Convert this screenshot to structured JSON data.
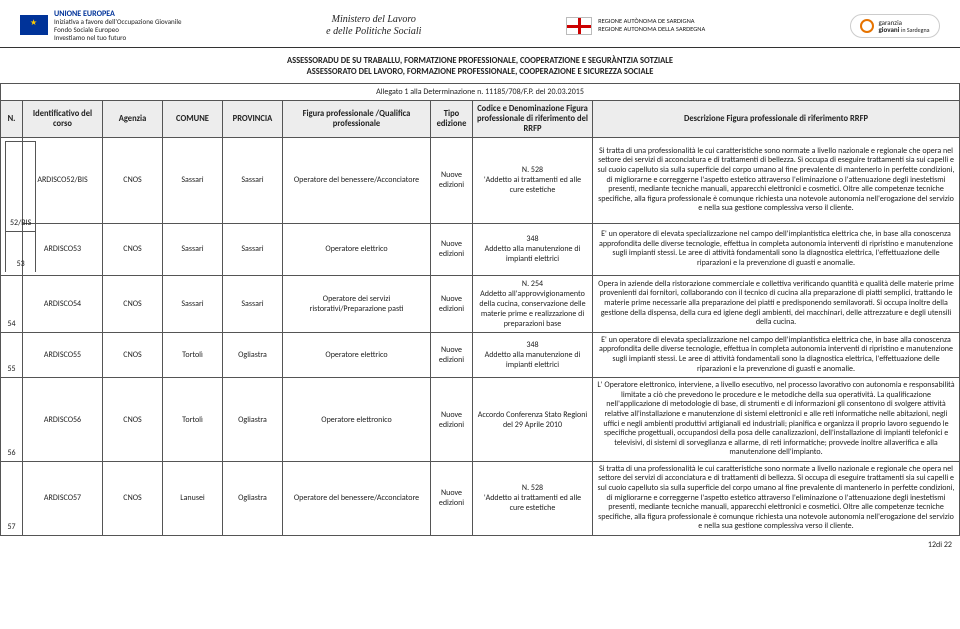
{
  "header": {
    "eu_title": "UNIONE EUROPEA",
    "eu_sub1": "Iniziativa a favore dell'Occupazione Giovanile",
    "eu_sub2": "Fondo Sociale Europeo",
    "eu_sub3": "Investiamo nel tuo futuro",
    "center_line1": "Ministero del Lavoro",
    "center_line2": "e delle Politiche Sociali",
    "sard_line1": "REGIONE AUTÒNOMA DE SARDIGNA",
    "sard_line2": "REGIONE AUTONOMA DELLA SARDEGNA",
    "gar_line1": "garanzia",
    "gar_line2": "giovani",
    "gar_line3": "in Sardegna"
  },
  "subheader": {
    "l1": "ASSESSORADU DE SU TRABALLU, FORMATZIONE PROFESSIONALE, COOPERATZIONE E SEGURÀNTZIA SOTZIALE",
    "l2": "ASSESSORATO DEL LAVORO, FORMAZIONE PROFESSIONALE, COOPERAZIONE E SICUREZZA SOCIALE"
  },
  "allegato": "Allegato 1 alla Determinazione n. 11185/708/F.P. del 20.03.2015",
  "columns": {
    "n": "N.",
    "id": "Identificativo del corso",
    "ag": "Agenzia",
    "com": "COMUNE",
    "prov": "PROVINCIA",
    "fig": "Figura professionale /Qualifica professionale",
    "ed": "Tipo edizione",
    "cod": "Codice e Denominazione Figura professionale di riferimento del RRFP",
    "desc": "Descrizione Figura professionale di riferimento RRFP"
  },
  "edizione": "Nuove edizioni",
  "agenzia": "CNOS",
  "rows": [
    {
      "n": "52/BIS",
      "id": "ARDISCO52/BIS",
      "com": "Sassari",
      "prov": "Sassari",
      "fig": "Operatore del benessere/Acconciatore",
      "cod": "N. 528\n'Addetto ai trattamenti ed alle cure estetiche",
      "desc": "Si tratta di una professionalità le cui caratteristiche sono normate a livello nazionale e regionale che opera nel settore dei servizi di acconciatura e di trattamenti di bellezza. Si occupa di eseguire trattamenti sia sui capelli e sul cuoio capelluto sia sulla superficie del corpo umano al fine prevalente di mantenerlo in perfette condizioni, di migliorarne e correggerne l'aspetto estetico attraverso l'eliminazione o l'attenuazione degli inestetismi presenti, mediante tecniche manuali, apparecchi elettronici e cosmetici. Oltre alle competenze tecniche specifiche, alla figura professionale è comunque richiesta una notevole autonomia nell'erogazione del servizio e nella sua gestione complessiva verso il cliente."
    },
    {
      "n": "53",
      "id": "ARDISCO53",
      "com": "Sassari",
      "prov": "Sassari",
      "fig": "Operatore elettrico",
      "cod": "348\nAddetto alla manutenzione di impianti elettrici",
      "desc": "E' un operatore di elevata specializzazione nel campo dell'impiantistica elettrica che, in base alla conoscenza approfondita delle diverse tecnologie, effettua in completa autonomia interventi di ripristino e manutenzione sugli impianti stessi. Le aree di attività fondamentali sono la diagnostica elettrica, l'effettuazione delle riparazioni e la prevenzione di guasti e anomalie."
    },
    {
      "n": "54",
      "id": "ARDISCO54",
      "com": "Sassari",
      "prov": "Sassari",
      "fig": "Operatore dei servizi ristorativi/Preparazione pasti",
      "cod": "N. 254\nAddetto all'approvvigionamento della cucina, conservazione delle materie prime e realizzazione di preparazioni base",
      "desc": "Opera in aziende della ristorazione commerciale e collettiva verificando quantità e qualità delle materie prime provenienti dai fornitori, collaborando con il tecnico di cucina alla preparazione di piatti semplici, trattando le materie prime necessarie alla preparazione dei piatti e predisponendo semilavorati. Si occupa inoltre della gestione della dispensa, della cura ed igiene degli ambienti, dei macchinari, delle attrezzature e degli utensili della cucina."
    },
    {
      "n": "55",
      "id": "ARDISCO55",
      "com": "Tortolì",
      "prov": "Ogliastra",
      "fig": "Operatore elettrico",
      "cod": "348\nAddetto alla manutenzione di impianti elettrici",
      "desc": "E' un operatore di elevata specializzazione nel campo dell'impiantistica elettrica che, in base alla conoscenza approfondita delle diverse tecnologie, effettua in completa autonomia interventi di ripristino e manutenzione sugli impianti stessi. Le aree di attività fondamentali sono la diagnostica elettrica, l'effettuazione delle riparazioni e la prevenzione di guasti e anomalie."
    },
    {
      "n": "56",
      "id": "ARDISCO56",
      "com": "Tortolì",
      "prov": "Ogliastra",
      "fig": "Operatore elettronico",
      "cod": "Accordo Conferenza Stato Regioni del 29 Aprile 2010",
      "desc": "L' Operatore elettronico, interviene, a livello esecutivo, nel processo lavorativo con autonomia e responsabilità limitate a ciò che prevedono le procedure e le metodiche della sua operatività. La qualificazione nell'applicazione di metodologie di base, di strumenti e di informazioni gli consentono di svolgere attività relative all'installazione e manutenzione di sistemi elettronici e alle reti informatiche nelle abitazioni, negli uffici e negli ambienti produttivi artigianali ed industriali; pianifica e organizza il proprio lavoro seguendo le specifiche progettuali, occupandosi della posa delle canalizzazioni, dell'installazione di impianti telefonici e televisivi, di sistemi di sorveglianza e allarme, di reti informatiche; provvede inoltre allaverifica e alla manutenzione dell'impianto."
    },
    {
      "n": "57",
      "id": "ARDISCO57",
      "com": "Lanusei",
      "prov": "Ogliastra",
      "fig": "Operatore del benessere/Acconciatore",
      "cod": "N. 528\n'Addetto ai trattamenti ed alle cure estetiche",
      "desc": "Si tratta di una professionalità le cui caratteristiche sono normate a livello nazionale e regionale che opera nel settore dei servizi di acconciatura e di trattamenti di bellezza. Si occupa di eseguire trattamenti sia sui capelli e sul cuoio capelluto sia sulla superficie del corpo umano al fine prevalente di mantenerlo in perfette condizioni, di migliorarne e correggerne l'aspetto estetico attraverso l'eliminazione o l'attenuazione degli inestetismi presenti, mediante tecniche manuali, apparecchi elettronici e cosmetici. Oltre alle competenze tecniche specifiche, alla figura professionale è comunque richiesta una notevole autonomia nell'erogazione del servizio e nella sua gestione complessiva verso il cliente."
    }
  ],
  "merged_pairs": [
    [
      0,
      1
    ]
  ],
  "footer": "12di 22"
}
